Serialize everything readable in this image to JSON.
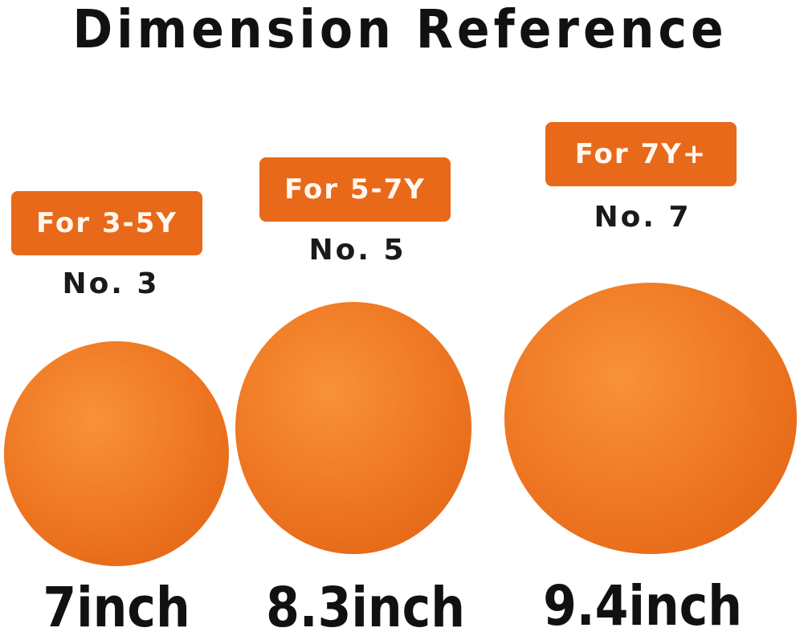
{
  "title": "Dimension Reference",
  "colors": {
    "badge": "#e8691a",
    "ball": "#f07a25",
    "text": "#111111"
  },
  "items": [
    {
      "age": "For 3-5Y",
      "model": "No. 3",
      "size": "7inch"
    },
    {
      "age": "For 5-7Y",
      "model": "No. 5",
      "size": "8.3inch"
    },
    {
      "age": "For 7Y+",
      "model": "No. 7",
      "size": "9.4inch"
    }
  ]
}
